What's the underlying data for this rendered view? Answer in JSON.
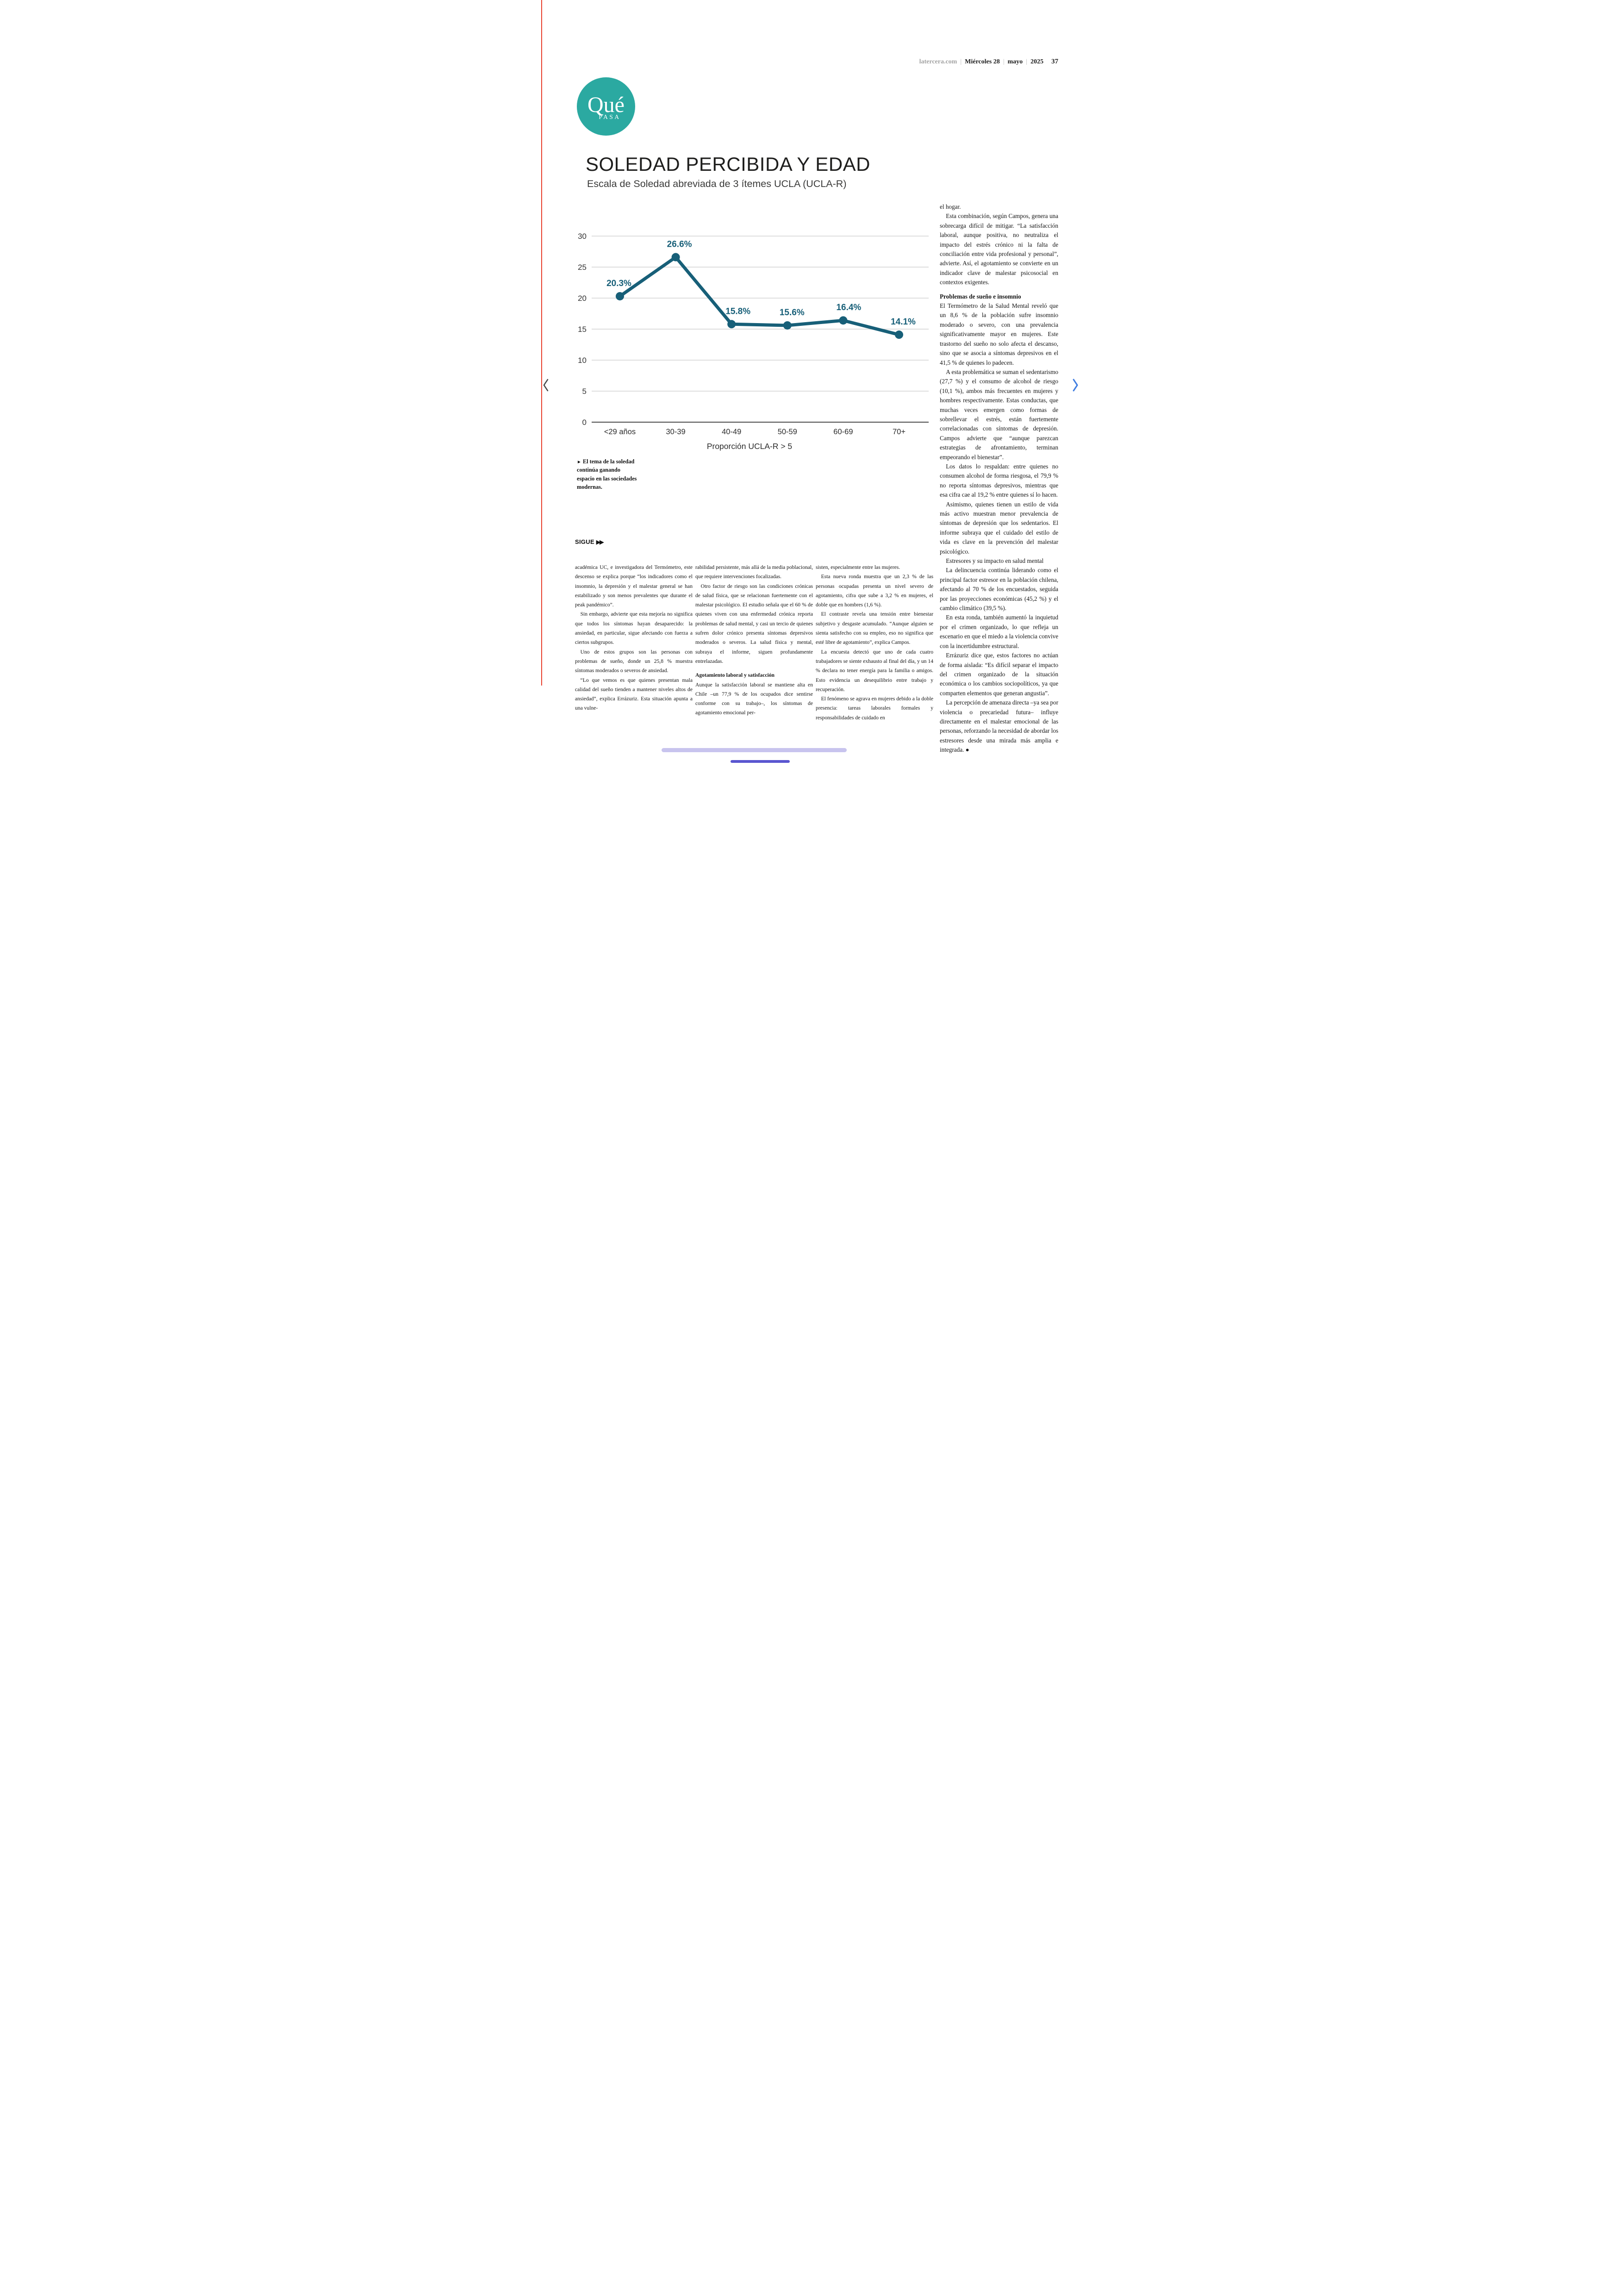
{
  "header": {
    "site": "latercera.com",
    "divider": "|",
    "date": "Miércoles 28",
    "month": "mayo",
    "year": "2025",
    "page_number": "37"
  },
  "logo": {
    "line1": "Qué",
    "line2": "PASA",
    "bg_color": "#2ba9a1"
  },
  "article": {
    "title": "SOLEDAD PERCIBIDA Y EDAD",
    "subtitle": "Escala de Soledad abreviada de 3 ítemes UCLA (UCLA-R)",
    "caption_marker": "►",
    "caption": "El tema de la soledad continúa ganando espacio en las sociedades modernas.",
    "sigue_label": "SIGUE",
    "sigue_arrows": "▶▶"
  },
  "chart_data": {
    "type": "line",
    "title": "SOLEDAD PERCIBIDA Y EDAD",
    "subtitle": "Escala de Soledad abreviada de 3 ítemes UCLA (UCLA-R)",
    "categories": [
      "<29 años",
      "30-39",
      "40-49",
      "50-59",
      "60-69",
      "70+"
    ],
    "values": [
      20.3,
      26.6,
      15.8,
      15.6,
      16.4,
      14.1
    ],
    "point_labels": [
      "20.3%",
      "26.6%",
      "15.8%",
      "15.6%",
      "16.4%",
      "14.1%"
    ],
    "xlabel": "Proporción UCLA-R > 5",
    "ylabel": "",
    "ylim": [
      0,
      30
    ],
    "yticks": [
      30,
      25,
      20,
      15,
      10,
      5,
      0
    ],
    "grid": true,
    "legend": "none",
    "line_color": "#175f78",
    "grid_color": "#cacaca",
    "axis_color": "#4b4b4b"
  },
  "columns": {
    "col1": [
      {
        "class": "noindent",
        "text": "académica UC, e investigadora del Termómetro, este descenso se explica porque “los indicadores como el insomnio, la depresión y el malestar general se han estabilizado y son menos prevalentes que durante el peak pandémico”."
      },
      {
        "class": "",
        "text": "Sin embargo, advierte que esta mejoría no significa que todos los síntomas hayan desaparecido: la ansiedad, en particular, sigue afectando con fuerza a ciertos subgrupos."
      },
      {
        "class": "",
        "text": "Uno de estos grupos son las personas con problemas de sueño, donde un 25,8 % muestra síntomas moderados o severos de ansiedad."
      },
      {
        "class": "",
        "text": "“Lo que vemos es que quienes presentan mala calidad del sueño tienden a mantener niveles altos de ansiedad”, explica Errázuriz. Esta situación apunta a una vulne-"
      }
    ],
    "col2": [
      {
        "class": "noindent",
        "text": "rabilidad persistente, más allá de la media poblacional, que requiere intervenciones focalizadas."
      },
      {
        "class": "",
        "text": "Otro factor de riesgo son las condiciones crónicas de salud física, que se relacionan fuertemente con el malestar psicológico. El estudio señala que el 60 % de quienes viven con una enfermedad crónica reporta problemas de salud mental, y casi un tercio de quienes sufren dolor crónico presenta síntomas depresivos moderados o severos. La salud física y mental, subraya el informe, siguen profundamente entrelazadas."
      },
      {
        "class": "subhead",
        "text": "Agotamiento laboral y satisfacción"
      },
      {
        "class": "noindent",
        "text": "Aunque la satisfacción laboral se mantiene alta en Chile –un 77,9 % de los ocupados dice sentirse conforme con su trabajo–, los síntomas de agotamiento emocional per-"
      }
    ],
    "col3": [
      {
        "class": "noindent",
        "text": "sisten, especialmente entre las mujeres."
      },
      {
        "class": "",
        "text": "Esta nueva ronda muestra que un 2,3 % de las personas ocupadas presenta un nivel severo de agotamiento, cifra que sube a 3,2 % en mujeres, el doble que en hombres (1,6 %)."
      },
      {
        "class": "",
        "text": "El contraste revela una tensión entre bienestar subjetivo y desgaste acumulado. “Aunque alguien se sienta satisfecho con su empleo, eso no significa que esté libre de agotamiento”, explica Campos."
      },
      {
        "class": "",
        "text": "La encuesta detectó que uno de cada cuatro trabajadores se siente exhausto al final del día, y un 14 % declara no tener energía para la familia o amigos. Esto evidencia un desequilibrio entre trabajo y recuperación."
      },
      {
        "class": "",
        "text": "El fenómeno se agrava en mujeres debido a la doble presencia: tareas laborales formales y responsabilidades de cuidado en"
      }
    ],
    "rail": [
      {
        "class": "noindent",
        "text": "el hogar."
      },
      {
        "class": "",
        "text": "Esta combinación, según Campos, genera una sobrecarga difícil de mitigar. “La satisfacción laboral, aunque positiva, no neutraliza el impacto del estrés crónico ni la falta de conciliación entre vida profesional y personal”, advierte. Así, el agotamiento se convierte en un indicador clave de malestar psicosocial en contextos exigentes."
      },
      {
        "class": "subhead",
        "text": "Problemas de sueño e insomnio"
      },
      {
        "class": "noindent",
        "text": "El Termómetro de la Salud Mental reveló que un 8,6 % de la población sufre insomnio moderado o severo, con una prevalencia significativamente mayor en mujeres. Este trastorno del sueño no solo afecta el descanso, sino que se asocia a síntomas depresivos en el 41,5 % de quienes lo padecen."
      },
      {
        "class": "",
        "text": "A esta problemática se suman el sedentarismo (27,7 %) y el consumo de alcohol de riesgo (10,1 %), ambos más frecuentes en mujeres y hombres respectivamente. Estas conductas, que muchas veces emergen como formas de sobrellevar el estrés, están fuertemente correlacionadas con síntomas de depresión. Campos advierte que “aunque parezcan estrategias de afrontamiento, terminan empeorando el bienestar”."
      },
      {
        "class": "",
        "text": "Los datos lo respaldan: entre quienes no consumen alcohol de forma riesgosa, el 79,9 % no reporta síntomas depresivos, mientras que esa cifra cae al 19,2 % entre quienes sí lo hacen."
      },
      {
        "class": "",
        "text": "Asimismo, quienes tienen un estilo de vida más activo muestran menor prevalencia de síntomas de depresión que los sedentarios. El informe subraya que el cuidado del estilo de vida es clave en la prevención del malestar psicológico."
      },
      {
        "class": "",
        "text": "Estresores y su impacto en salud mental"
      },
      {
        "class": "",
        "text": "La delincuencia continúa liderando como el principal factor estresor en la población chilena, afectando al 70 % de los encuestados, seguida por las proyecciones económicas (45,2 %) y el cambio climático (39,5 %)."
      },
      {
        "class": "",
        "text": "En esta ronda, también aumentó la inquietud por el crimen organizado, lo que refleja un escenario en que el miedo a la violencia convive con la incertidumbre estructural."
      },
      {
        "class": "",
        "text": "Errázuriz dice que, estos factores no actúan de forma aislada: “Es difícil separar el impacto del crimen organizado de la situación económica o los cambios sociopolíticos, ya que comparten elementos que generan angustia”."
      },
      {
        "class": "",
        "text": "La percepción de amenaza directa –ya sea por violencia o precariedad futura– influye directamente en el malestar emocional de las personas, reforzando la necesidad de abordar los estresores desde una mirada más amplia e integrada. ●"
      }
    ]
  }
}
